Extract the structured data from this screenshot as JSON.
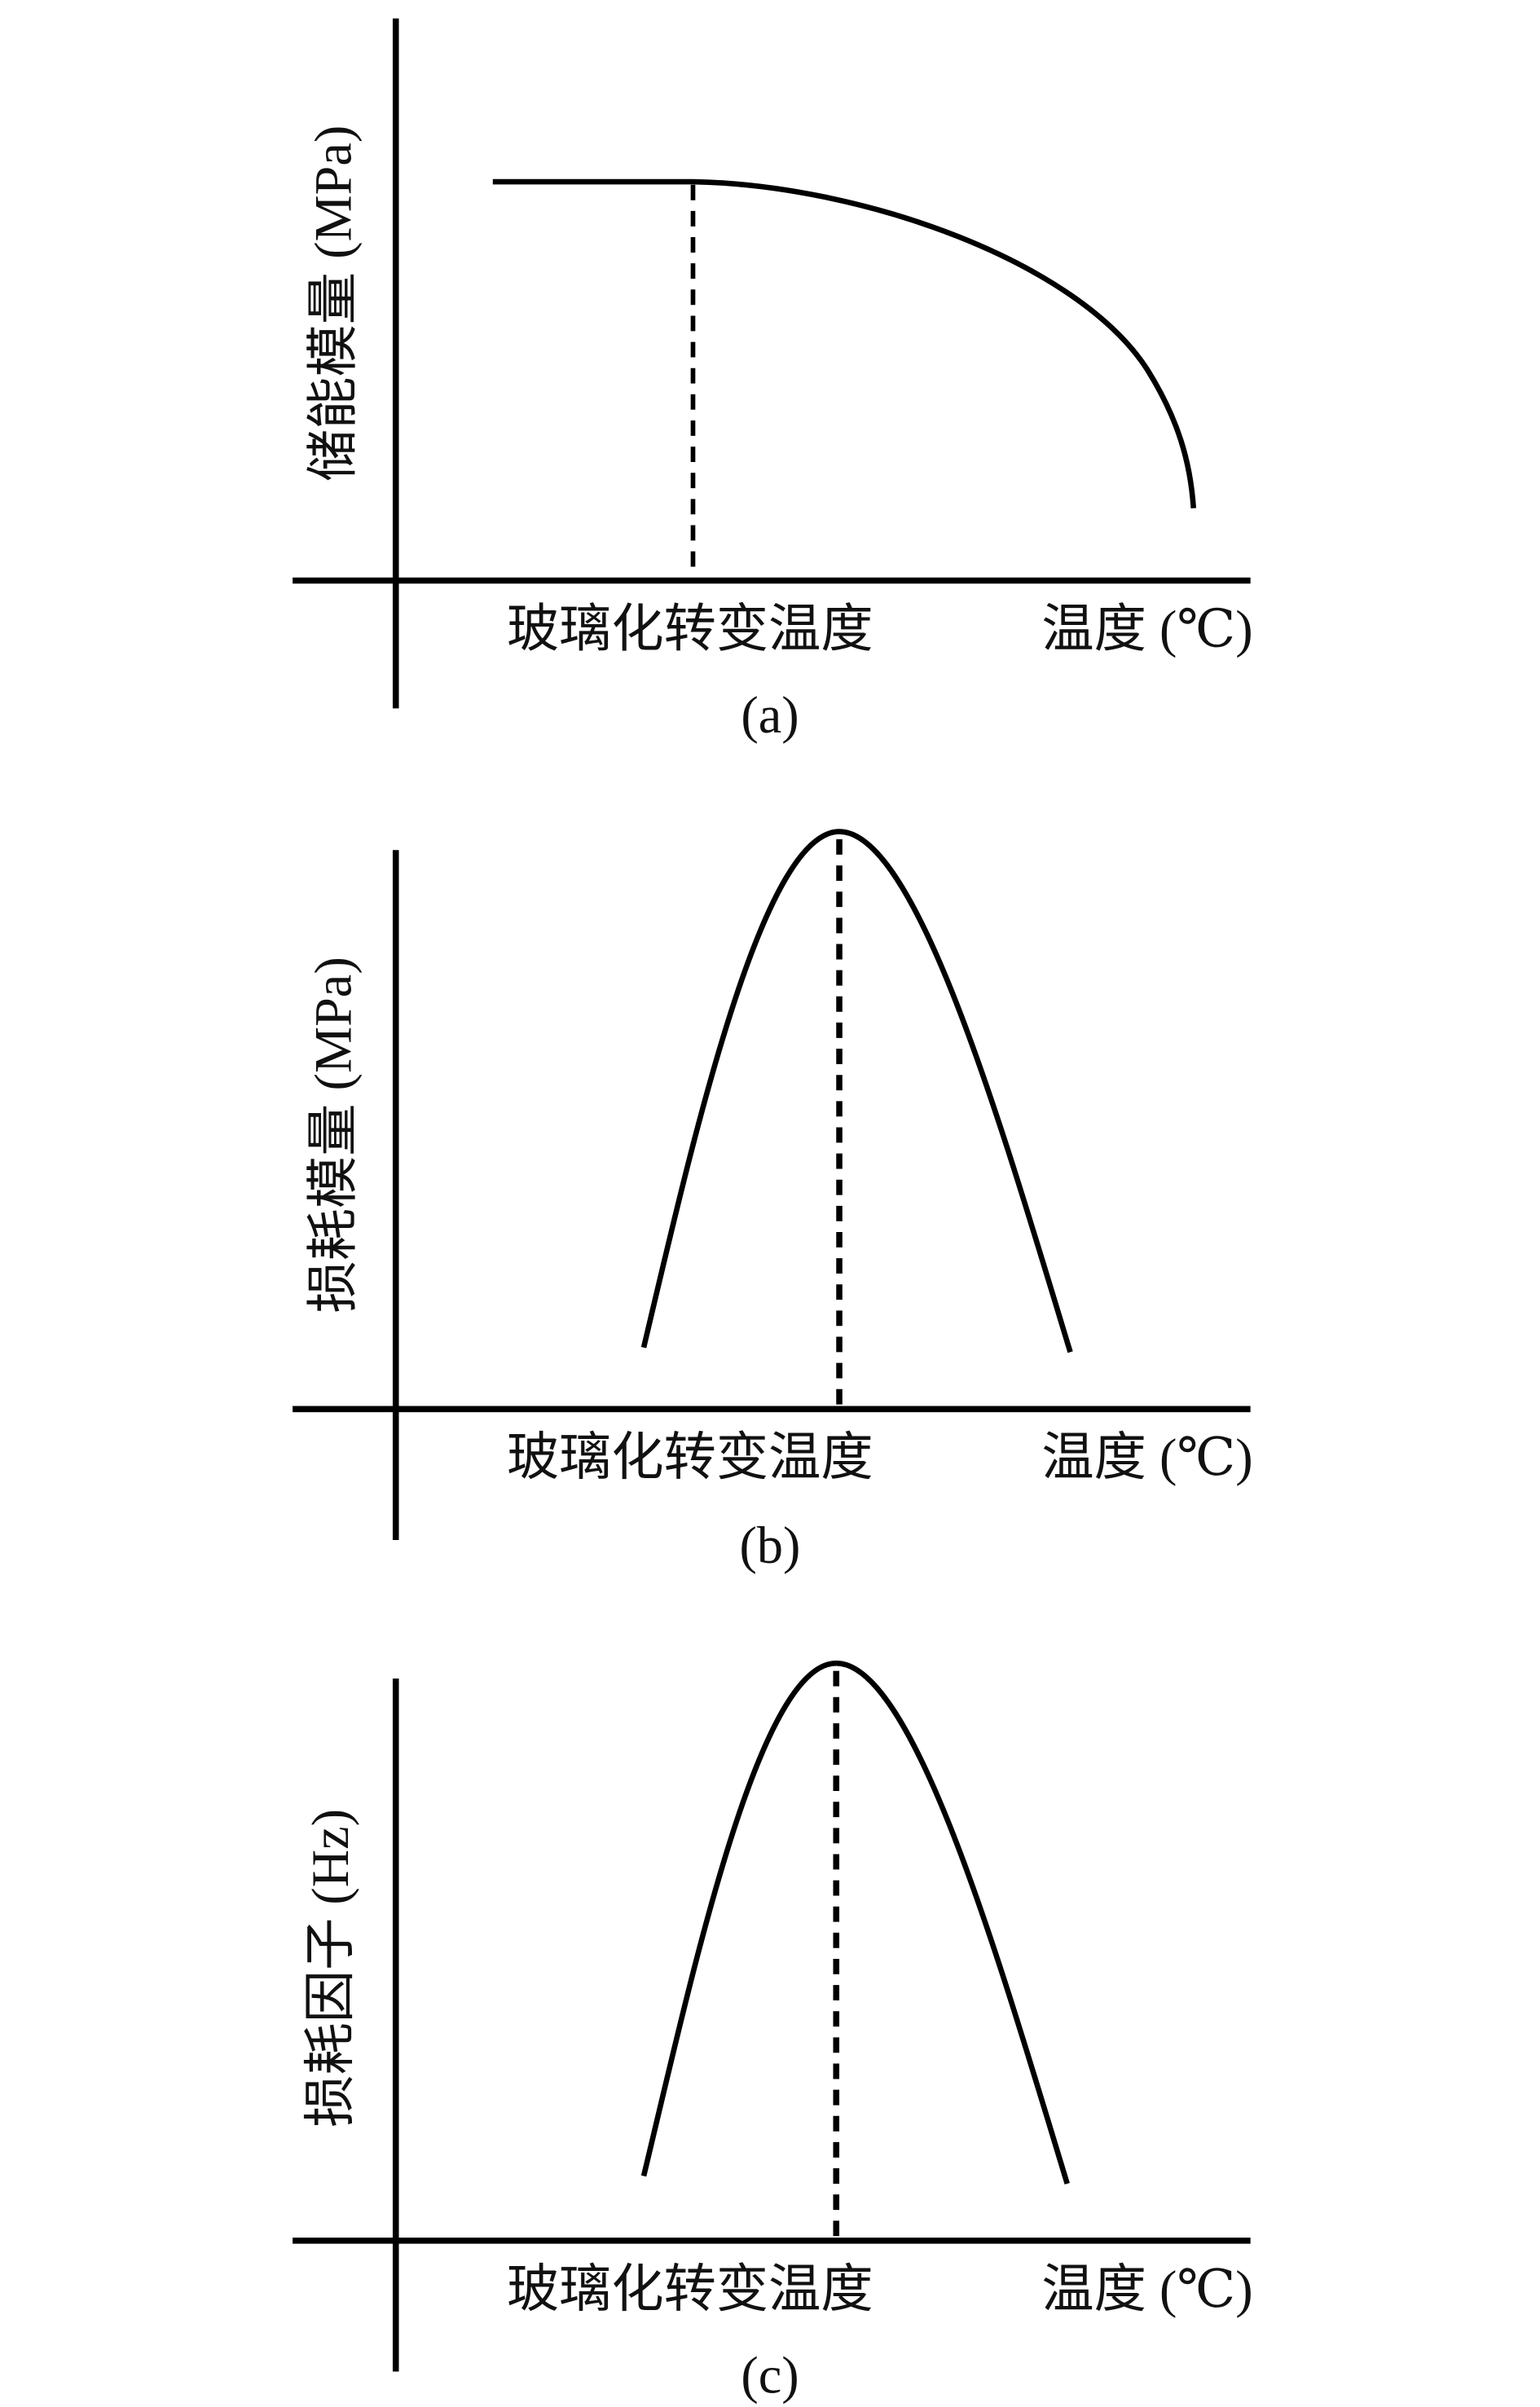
{
  "panels": [
    {
      "y_label": "储能模量 (MPa)",
      "x_marker_label": "玻璃化转变温度",
      "x_label": "温度 (℃)",
      "caption": "(a)"
    },
    {
      "y_label": "损耗模量 (MPa)",
      "x_marker_label": "玻璃化转变温度",
      "x_label": "温度 (℃)",
      "caption": "(b)"
    },
    {
      "y_label": "损耗因子 (Hz)",
      "x_marker_label": "玻璃化转变温度",
      "x_label": "温度 (℃)",
      "caption": "(c)"
    }
  ]
}
